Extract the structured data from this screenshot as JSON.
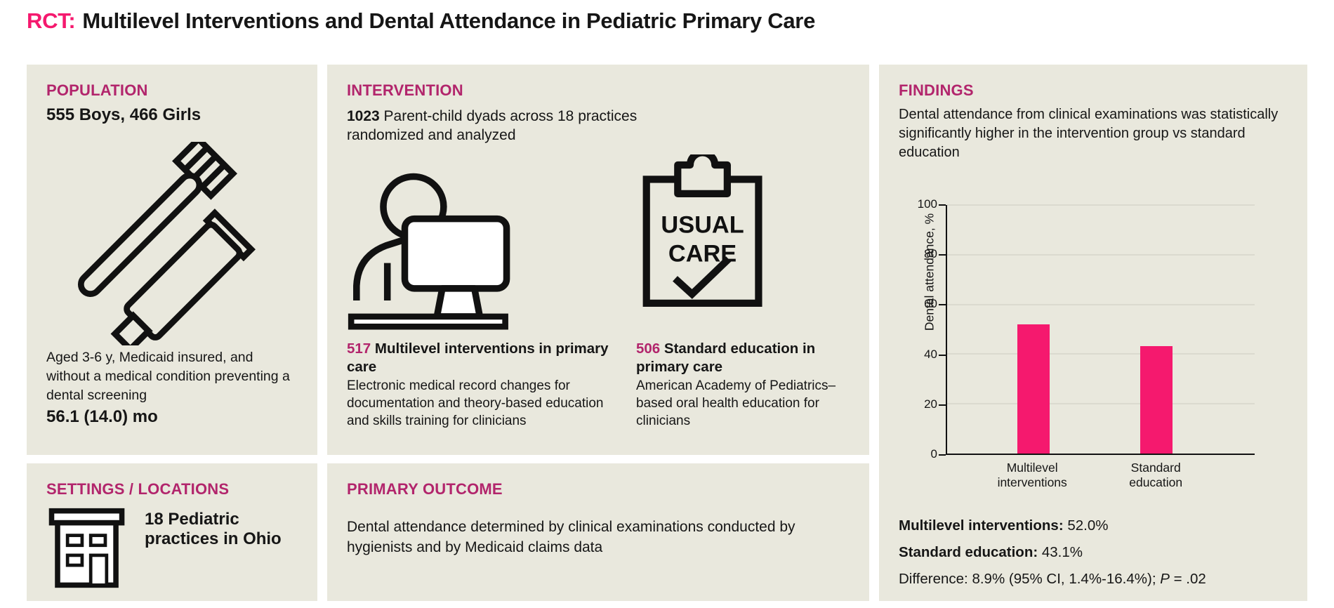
{
  "title": {
    "prefix": "RCT:",
    "text": "Multilevel Interventions and Dental Attendance in Pediatric Primary Care"
  },
  "colors": {
    "accent_pink": "#F5196E",
    "header_magenta": "#B2256C",
    "panel_bg": "#E9E8DD",
    "text": "#161616"
  },
  "panels": {
    "population": {
      "header": "POPULATION",
      "count_line": "555 Boys, 466 Girls",
      "icon": "toothbrush-toothpaste-icon",
      "description": "Aged 3-6 y, Medicaid insured, and without a medical condition preventing a dental screening",
      "mean_age": "56.1 (14.0) mo"
    },
    "settings": {
      "header": "SETTINGS / LOCATIONS",
      "icon": "building-icon",
      "text": "18 Pediatric practices in Ohio"
    },
    "intervention": {
      "header": "INTERVENTION",
      "lead_number": "1023",
      "lead_text": " Parent-child dyads across 18 practices randomized and analyzed",
      "arms": [
        {
          "number": "517",
          "title": " Multilevel interventions in primary care",
          "description": "Electronic medical record changes for documentation and theory-based education and skills training for clinicians",
          "icon": "clinician-computer-icon"
        },
        {
          "number": "506",
          "title": " Standard education in primary care",
          "description": "American Academy of Pediatrics–based oral health education for clinicians",
          "icon": "usual-care-clipboard-icon",
          "clipboard": {
            "line1": "USUAL",
            "line2": "CARE"
          }
        }
      ]
    },
    "outcome": {
      "header": "PRIMARY OUTCOME",
      "text": "Dental attendance determined by clinical examinations conducted by hygienists and by Medicaid claims data"
    },
    "findings": {
      "header": "FINDINGS",
      "summary": "Dental attendance from clinical examinations was statistically significantly higher in the intervention group vs standard education",
      "stats": [
        {
          "label": "Multilevel interventions:",
          "value": " 52.0%"
        },
        {
          "label": "Standard education:",
          "value": " 43.1%"
        }
      ],
      "difference_prefix": "Difference: 8.9% (95% CI, 1.4%-16.4%); ",
      "p_label": "P",
      "p_value": " = .02"
    }
  },
  "chart_data": {
    "type": "bar",
    "categories": [
      "Multilevel interventions",
      "Standard education"
    ],
    "values": [
      52.0,
      43.1
    ],
    "title": "",
    "xlabel": "",
    "ylabel": "Dental attendance, %",
    "ylim": [
      0,
      100
    ],
    "yticks": [
      0,
      20,
      40,
      60,
      80,
      100
    ],
    "bar_color": "#F5196E",
    "grid": true,
    "legend": false
  }
}
